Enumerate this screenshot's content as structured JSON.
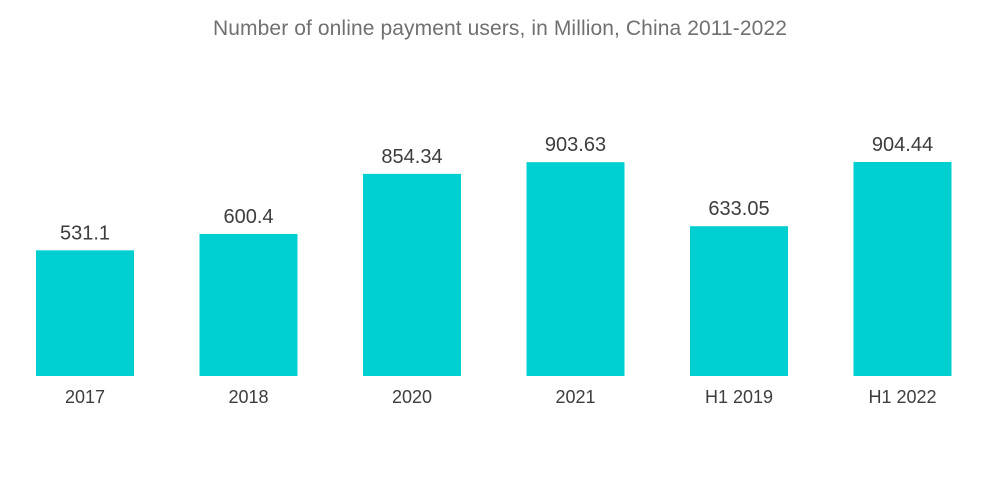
{
  "chart_data": {
    "type": "bar",
    "title": "Number of online payment users, in Million, China 2011-2022",
    "xlabel": "",
    "ylabel": "",
    "categories": [
      "2017",
      "2018",
      "2020",
      "2021",
      "H1 2019",
      "H1 2022"
    ],
    "series": [
      {
        "values": [
          531.1,
          600.4,
          854.34,
          903.63,
          633.05,
          904.44
        ],
        "labels": [
          "531.1",
          "600.4",
          "854.34",
          "903.63",
          "633.05",
          "904.44"
        ],
        "color": "#00CFD1"
      }
    ],
    "ylim": [
      0,
      904.44
    ],
    "grid": false,
    "legend": "none"
  }
}
